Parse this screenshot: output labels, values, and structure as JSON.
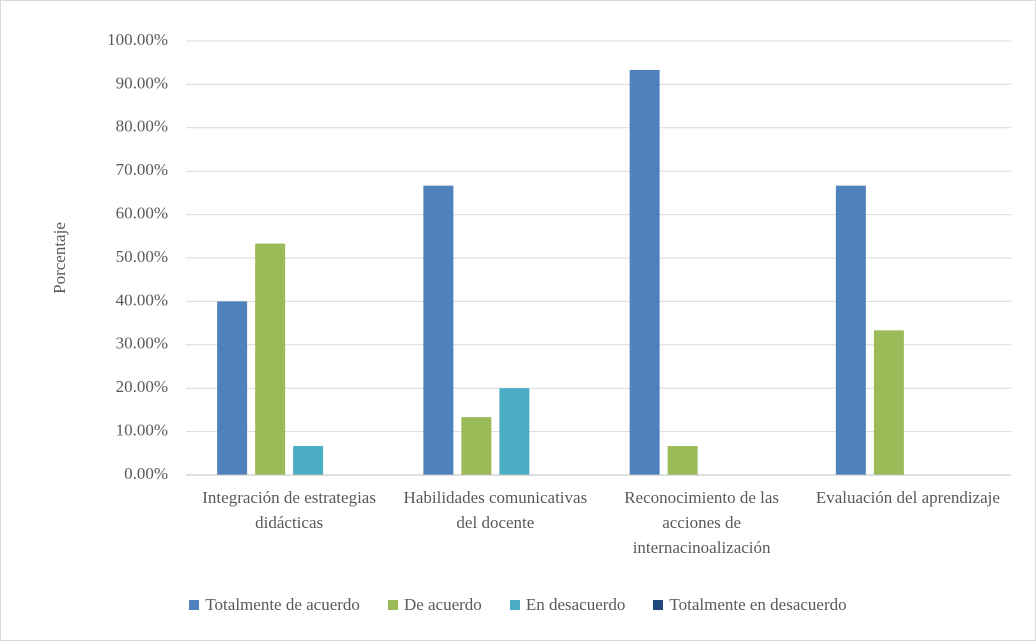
{
  "chart_data": {
    "type": "bar",
    "y_label": "Porcentaje",
    "categories": [
      "Integración de estrategias didácticas",
      "Habilidades comunicativas del docente",
      "Reconocimiento de las acciones de internacinoalización",
      "Evaluación del aprendizaje"
    ],
    "series": [
      {
        "name": "Totalmente de acuerdo",
        "color": "#4f81bd",
        "values": [
          40,
          66.67,
          93.33,
          66.67
        ]
      },
      {
        "name": "De acuerdo",
        "color": "#9bbb59",
        "values": [
          53.33,
          13.33,
          6.67,
          33.33
        ]
      },
      {
        "name": "En desacuerdo",
        "color": "#4bacc6",
        "values": [
          6.67,
          20,
          0,
          0
        ]
      },
      {
        "name": "Totalmente en desacuerdo",
        "color": "#1f497d",
        "values": [
          0,
          0,
          0,
          0
        ]
      }
    ],
    "ylim": [
      0,
      100
    ],
    "yticks": [
      {
        "value": 0,
        "label": "0.00%"
      },
      {
        "value": 10,
        "label": "10.00%"
      },
      {
        "value": 20,
        "label": "20.00%"
      },
      {
        "value": 30,
        "label": "30.00%"
      },
      {
        "value": 40,
        "label": "40.00%"
      },
      {
        "value": 50,
        "label": "50.00%"
      },
      {
        "value": 60,
        "label": "60.00%"
      },
      {
        "value": 70,
        "label": "70.00%"
      },
      {
        "value": 80,
        "label": "80.00%"
      },
      {
        "value": 90,
        "label": "90.00%"
      },
      {
        "value": 100,
        "label": "100.00%"
      }
    ],
    "grid": true,
    "legend": "bottom"
  }
}
